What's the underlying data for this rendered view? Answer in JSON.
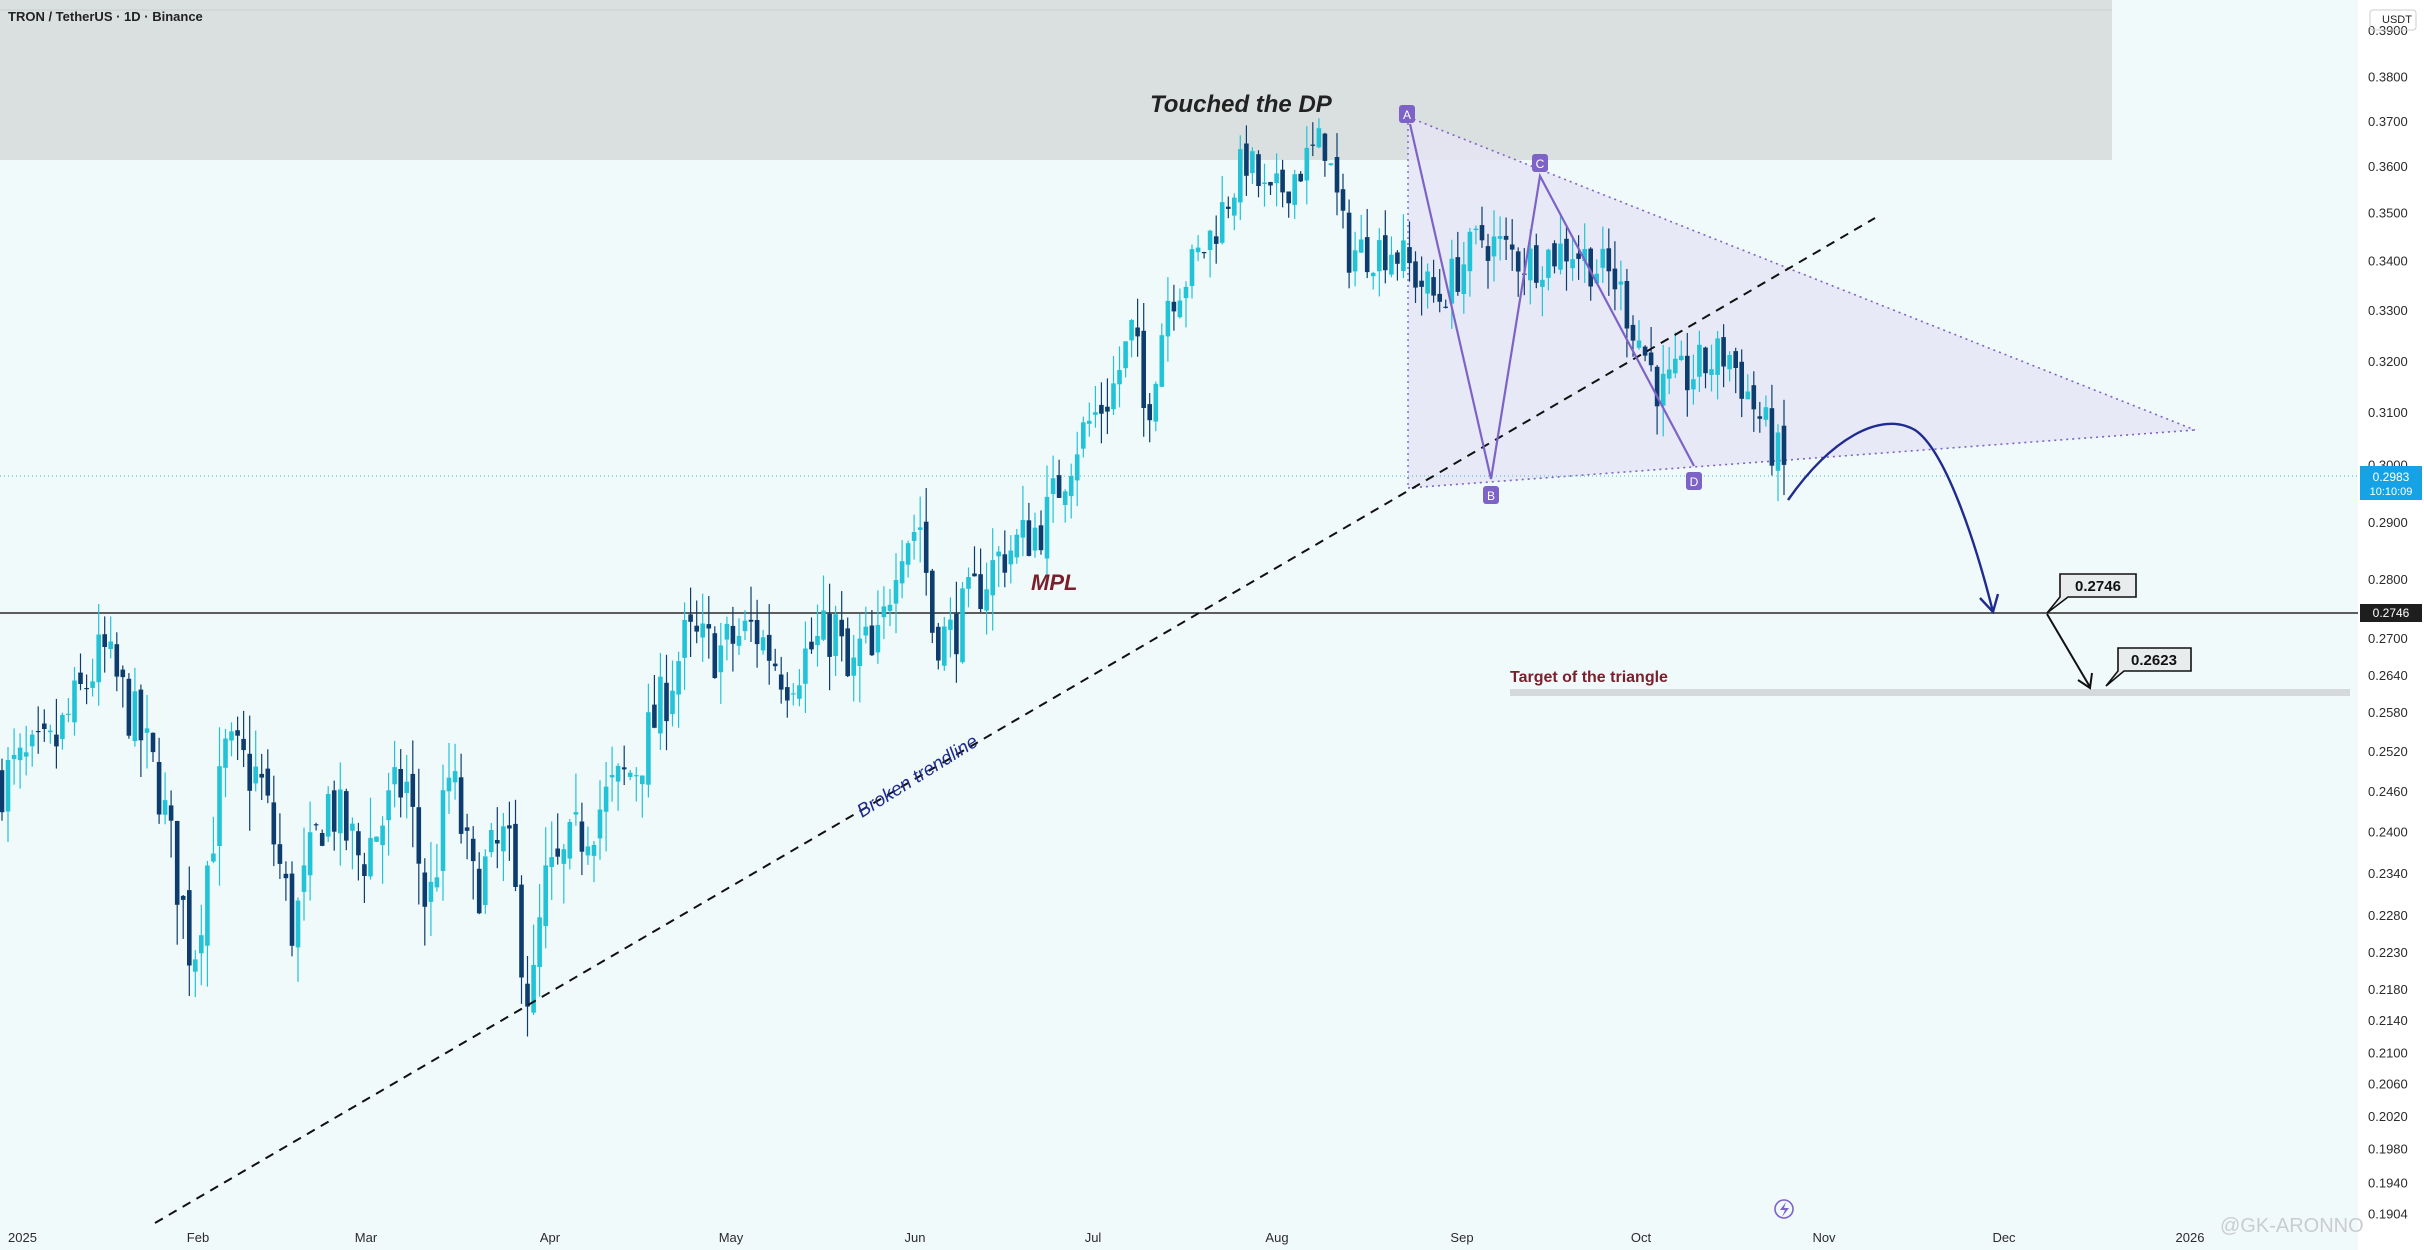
{
  "header": {
    "symbol_title": "TRON / TetherUS · 1D · Binance",
    "currency": "USDT"
  },
  "watermark": "@GK-ARONNO",
  "chart_data": {
    "type": "candlestick",
    "title": "TRON / TetherUS · 1D · Binance",
    "y_axis": {
      "unit": "USDT",
      "ticks": [
        "0.3900",
        "0.3800",
        "0.3700",
        "0.3600",
        "0.3500",
        "0.3400",
        "0.3300",
        "0.3200",
        "0.3100",
        "0.3000",
        "0.2900",
        "0.2800",
        "0.2700",
        "0.2640",
        "0.2580",
        "0.2520",
        "0.2460",
        "0.2400",
        "0.2340",
        "0.2280",
        "0.2230",
        "0.2180",
        "0.2140",
        "0.2100",
        "0.2060",
        "0.2020",
        "0.1980",
        "0.1940",
        "0.1904"
      ]
    },
    "x_axis": {
      "ticks": [
        "2025",
        "Feb",
        "Mar",
        "Apr",
        "May",
        "Jun",
        "Jul",
        "Aug",
        "Sep",
        "Oct",
        "Nov",
        "Dec",
        "2026"
      ]
    },
    "current_price": {
      "value": "0.2983",
      "countdown": "10:10:09"
    },
    "horizontal_line": {
      "value": "0.2746"
    },
    "annotations": {
      "zone_label": "Touched the DP",
      "mpl_label": "MPL",
      "trendline_label": "Broken trendline",
      "target_label": "Target of the triangle",
      "callout_1": "0.2746",
      "callout_2": "0.2623",
      "points": [
        "A",
        "B",
        "C",
        "D"
      ]
    },
    "seed_closes": [
      0.248,
      0.252,
      0.268,
      0.256,
      0.247,
      0.222,
      0.252,
      0.248,
      0.226,
      0.245,
      0.236,
      0.248,
      0.228,
      0.249,
      0.232,
      0.239,
      0.215,
      0.232,
      0.235,
      0.241,
      0.245,
      0.25,
      0.26,
      0.27,
      0.268,
      0.272,
      0.264,
      0.268,
      0.272,
      0.262,
      0.27,
      0.266,
      0.27,
      0.287,
      0.29,
      0.272,
      0.27,
      0.275,
      0.284,
      0.29,
      0.305,
      0.314,
      0.327,
      0.308,
      0.333,
      0.338,
      0.346,
      0.362,
      0.352,
      0.366,
      0.342,
      0.343,
      0.332,
      0.345,
      0.34,
      0.343,
      0.336,
      0.314,
      0.322,
      0.299
    ],
    "seed_dates": [
      0,
      22,
      45,
      60,
      70,
      85,
      100,
      115,
      130,
      145,
      160,
      180,
      190,
      200,
      210,
      225,
      236,
      242,
      250,
      260,
      270,
      283,
      295,
      305,
      320,
      335,
      350,
      360,
      372,
      378,
      384,
      388,
      392,
      400,
      410,
      415,
      422,
      430,
      445,
      465,
      480,
      495,
      505,
      510,
      520,
      530,
      540,
      555,
      565,
      590,
      600,
      620,
      640,
      660,
      680,
      700,
      720,
      740,
      770,
      795
    ]
  },
  "colors": {
    "up": "#22c3d7",
    "down": "#0d3d6e",
    "zone": "#dadfdf",
    "triangle": "#e6e8f5",
    "pattern": "#7e63c6",
    "projection": "#1f2b8f",
    "text_dark": "#222222",
    "label_red": "#7a1f2b",
    "price_badge": "#15a3e6"
  }
}
